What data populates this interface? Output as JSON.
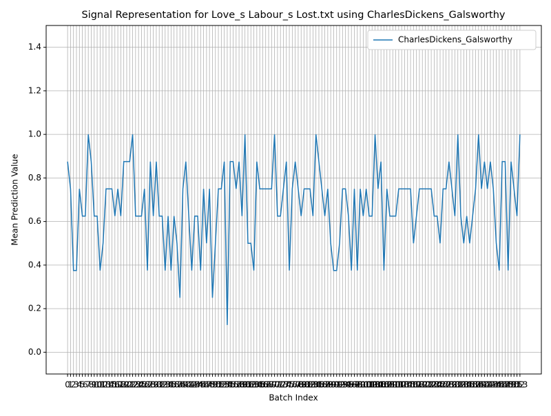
{
  "chart_data": {
    "type": "line",
    "title": "Signal Representation for Love_s Labour_s Lost.txt using CharlesDickens_Galsworthy",
    "x_label": "Batch Index",
    "y_label": "Mean Prediction Value",
    "x": [
      0,
      1,
      2,
      3,
      4,
      5,
      6,
      7,
      8,
      9,
      10,
      11,
      12,
      13,
      14,
      15,
      16,
      17,
      18,
      19,
      20,
      21,
      22,
      23,
      24,
      25,
      26,
      27,
      28,
      29,
      30,
      31,
      32,
      33,
      34,
      35,
      36,
      37,
      38,
      39,
      40,
      41,
      42,
      43,
      44,
      45,
      46,
      47,
      48,
      49,
      50,
      51,
      52,
      53,
      54,
      55,
      56,
      57,
      58,
      59,
      60,
      61,
      62,
      63,
      64,
      65,
      66,
      67,
      68,
      69,
      70,
      71,
      72,
      73,
      74,
      75,
      76,
      77,
      78,
      79,
      80,
      81,
      82,
      83,
      84,
      85,
      86,
      87,
      88,
      89,
      90,
      91,
      92,
      93,
      94,
      95,
      96,
      97,
      98,
      99,
      100,
      101,
      102,
      103,
      104,
      105,
      106,
      107,
      108,
      109,
      110,
      111,
      112,
      113,
      114,
      115,
      116,
      117,
      118,
      119,
      120,
      121,
      122,
      123,
      124,
      125,
      126,
      127,
      128,
      129,
      130,
      131,
      132,
      133,
      134,
      135,
      136,
      137,
      138,
      139,
      140,
      141,
      142,
      143,
      144,
      145,
      146,
      147,
      148,
      149,
      150,
      151,
      152,
      153
    ],
    "series": [
      {
        "name": "CharlesDickens_Galsworthy",
        "color": "#1f77b4",
        "values": [
          0.875,
          0.75,
          0.375,
          0.375,
          0.75,
          0.625,
          0.625,
          1,
          0.875,
          0.625,
          0.625,
          0.375,
          0.5,
          0.75,
          0.75,
          0.75,
          0.625,
          0.75,
          0.625,
          0.875,
          0.875,
          0.875,
          1,
          0.625,
          0.625,
          0.625,
          0.75,
          0.375,
          0.875,
          0.625,
          0.875,
          0.625,
          0.625,
          0.375,
          0.625,
          0.375,
          0.625,
          0.5,
          0.25,
          0.75,
          0.875,
          0.625,
          0.375,
          0.625,
          0.625,
          0.375,
          0.75,
          0.5,
          0.75,
          0.25,
          0.5,
          0.75,
          0.75,
          0.875,
          0.125,
          0.875,
          0.875,
          0.75,
          0.875,
          0.625,
          1,
          0.5,
          0.5,
          0.375,
          0.875,
          0.75,
          0.75,
          0.75,
          0.75,
          0.75,
          1,
          0.625,
          0.625,
          0.75,
          0.875,
          0.375,
          0.75,
          0.875,
          0.75,
          0.625,
          0.75,
          0.75,
          0.75,
          0.625,
          1,
          0.875,
          0.75,
          0.625,
          0.75,
          0.5,
          0.375,
          0.375,
          0.5,
          0.75,
          0.75,
          0.625,
          0.375,
          0.75,
          0.375,
          0.75,
          0.625,
          0.75,
          0.625,
          0.625,
          1,
          0.75,
          0.875,
          0.375,
          0.75,
          0.625,
          0.625,
          0.625,
          0.75,
          0.75,
          0.75,
          0.75,
          0.75,
          0.5,
          0.625,
          0.75,
          0.75,
          0.75,
          0.75,
          0.75,
          0.625,
          0.625,
          0.5,
          0.75,
          0.75,
          0.875,
          0.75,
          0.625,
          1,
          0.625,
          0.5,
          0.625,
          0.5,
          0.625,
          0.75,
          1,
          0.75,
          0.875,
          0.75,
          0.875,
          0.75,
          0.5,
          0.375,
          0.875,
          0.875,
          0.375,
          0.875,
          0.75,
          0.625,
          1
        ]
      }
    ],
    "xlim": [
      -7.25,
      160.25
    ],
    "xticks": [
      0,
      1,
      2,
      3,
      4,
      5,
      6,
      7,
      8,
      9,
      10,
      11,
      12,
      13,
      14,
      15,
      16,
      17,
      18,
      19,
      20,
      21,
      22,
      23,
      24,
      25,
      26,
      27,
      28,
      29,
      30,
      31,
      32,
      33,
      34,
      35,
      36,
      37,
      38,
      39,
      40,
      41,
      42,
      43,
      44,
      45,
      46,
      47,
      48,
      49,
      50,
      51,
      52,
      53,
      54,
      55,
      56,
      57,
      58,
      59,
      60,
      61,
      62,
      63,
      64,
      65,
      66,
      67,
      68,
      69,
      70,
      71,
      72,
      73,
      74,
      75,
      76,
      77,
      78,
      79,
      80,
      81,
      82,
      83,
      84,
      85,
      86,
      87,
      88,
      89,
      90,
      91,
      92,
      93,
      94,
      95,
      96,
      97,
      98,
      99,
      100,
      101,
      102,
      103,
      104,
      105,
      106,
      107,
      108,
      109,
      110,
      111,
      112,
      113,
      114,
      115,
      116,
      117,
      118,
      119,
      120,
      121,
      122,
      123,
      124,
      125,
      126,
      127,
      128,
      129,
      130,
      131,
      132,
      133,
      134,
      135,
      136,
      137,
      138,
      139,
      140,
      141,
      142,
      143,
      144,
      145,
      146,
      147,
      148,
      149,
      150,
      151,
      152,
      153
    ],
    "ylim": [
      -0.1,
      1.5
    ],
    "yticks": [
      {
        "value": 0,
        "label": "0.0"
      },
      {
        "value": 0.2,
        "label": "0.2"
      },
      {
        "value": 0.4,
        "label": "0.4"
      },
      {
        "value": 0.6,
        "label": "0.6"
      },
      {
        "value": 0.8,
        "label": "0.8"
      },
      {
        "value": 1,
        "label": "1.0"
      },
      {
        "value": 1.2,
        "label": "1.2"
      },
      {
        "value": 1.4,
        "label": "1.4"
      }
    ],
    "grid": true,
    "legend": "upper right"
  }
}
